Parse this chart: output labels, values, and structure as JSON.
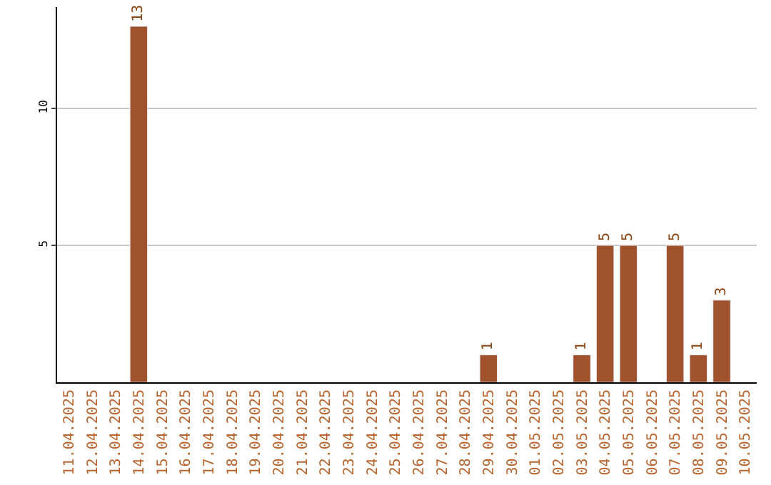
{
  "chart_data": {
    "type": "bar",
    "categories": [
      "11.04.2025",
      "12.04.2025",
      "13.04.2025",
      "14.04.2025",
      "15.04.2025",
      "16.04.2025",
      "17.04.2025",
      "18.04.2025",
      "19.04.2025",
      "20.04.2025",
      "21.04.2025",
      "22.04.2025",
      "23.04.2025",
      "24.04.2025",
      "25.04.2025",
      "26.04.2025",
      "27.04.2025",
      "28.04.2025",
      "29.04.2025",
      "30.04.2025",
      "01.05.2025",
      "02.05.2025",
      "03.05.2025",
      "04.05.2025",
      "05.05.2025",
      "06.05.2025",
      "07.05.2025",
      "08.05.2025",
      "09.05.2025",
      "10.05.2025"
    ],
    "values": [
      null,
      null,
      null,
      13,
      null,
      null,
      null,
      null,
      null,
      null,
      null,
      null,
      null,
      null,
      null,
      null,
      null,
      null,
      1,
      null,
      null,
      null,
      1,
      5,
      5,
      null,
      5,
      1,
      3,
      null
    ],
    "data_labels": true,
    "color": "#a0522d",
    "ylim": [
      0,
      13.7
    ],
    "yticks": [
      5,
      10
    ],
    "grid": "y",
    "legend": false
  }
}
